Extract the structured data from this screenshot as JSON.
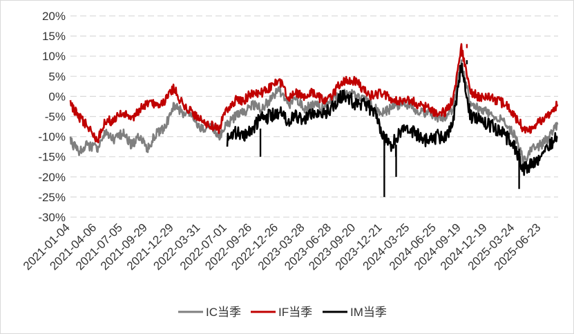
{
  "chart_data": {
    "type": "line",
    "title": "",
    "xlabel": "",
    "ylabel": "",
    "ylim": [
      -0.3,
      0.2
    ],
    "y_ticks": [
      "20%",
      "15%",
      "10%",
      "5%",
      "0%",
      "-5%",
      "-10%",
      "-15%",
      "-20%",
      "-25%",
      "-30%"
    ],
    "x_ticks": [
      "2021-01-04",
      "2021-04-06",
      "2021-07-05",
      "2021-09-29",
      "2021-12-29",
      "2022-03-31",
      "2022-07-01",
      "2022-09-26",
      "2022-12-26",
      "2023-03-28",
      "2023-06-28",
      "2023-09-20",
      "2023-12-21",
      "2024-03-25",
      "2024-06-25",
      "2024-09-19",
      "2024-12-19",
      "2025-03-24",
      "2025-06-23"
    ],
    "grid": "horizontal dashed",
    "legend_position": "bottom",
    "x": [
      "2021-01-04",
      "2021-02-01",
      "2021-03-01",
      "2021-04-06",
      "2021-05-06",
      "2021-06-04",
      "2021-07-05",
      "2021-08-03",
      "2021-09-01",
      "2021-09-29",
      "2021-10-28",
      "2021-11-26",
      "2021-12-29",
      "2022-01-27",
      "2022-03-01",
      "2022-03-31",
      "2022-05-05",
      "2022-06-02",
      "2022-07-01",
      "2022-07-29",
      "2022-08-26",
      "2022-09-26",
      "2022-10-28",
      "2022-11-25",
      "2022-12-26",
      "2023-01-30",
      "2023-02-27",
      "2023-03-28",
      "2023-04-27",
      "2023-05-29",
      "2023-06-28",
      "2023-07-26",
      "2023-08-23",
      "2023-09-20",
      "2023-10-24",
      "2023-11-21",
      "2023-12-21",
      "2024-01-22",
      "2024-02-21",
      "2024-03-25",
      "2024-04-24",
      "2024-05-27",
      "2024-06-25",
      "2024-07-23",
      "2024-08-20",
      "2024-09-19",
      "2024-10-21",
      "2024-11-18",
      "2024-12-19",
      "2025-01-17",
      "2025-02-21",
      "2025-03-24",
      "2025-04-22",
      "2025-05-22",
      "2025-06-23",
      "2025-07-21",
      "2025-08-18"
    ],
    "series": [
      {
        "name": "IC当季",
        "color": "#7f7f7f",
        "width": 2.6,
        "values": [
          -0.11,
          -0.14,
          -0.12,
          -0.13,
          -0.09,
          -0.11,
          -0.09,
          -0.12,
          -0.1,
          -0.13,
          -0.09,
          -0.08,
          -0.02,
          -0.04,
          -0.05,
          -0.08,
          -0.07,
          -0.1,
          -0.07,
          -0.05,
          -0.04,
          -0.02,
          -0.03,
          -0.01,
          0.02,
          -0.02,
          -0.01,
          -0.03,
          -0.02,
          -0.03,
          -0.01,
          0.0,
          0.01,
          0.0,
          -0.01,
          -0.03,
          -0.04,
          -0.03,
          -0.02,
          -0.02,
          -0.04,
          -0.04,
          -0.05,
          -0.06,
          -0.03,
          0.08,
          -0.02,
          -0.03,
          -0.04,
          -0.05,
          -0.07,
          -0.1,
          -0.16,
          -0.13,
          -0.12,
          -0.1,
          -0.07
        ]
      },
      {
        "name": "IF当季",
        "color": "#c00000",
        "width": 2.6,
        "values": [
          -0.02,
          -0.05,
          -0.07,
          -0.11,
          -0.06,
          -0.06,
          -0.04,
          -0.06,
          -0.03,
          -0.02,
          -0.02,
          -0.01,
          0.02,
          -0.02,
          -0.04,
          -0.06,
          -0.07,
          -0.08,
          -0.03,
          -0.01,
          -0.01,
          0.01,
          0.01,
          0.02,
          0.04,
          0.0,
          0.01,
          0.0,
          0.01,
          -0.01,
          0.0,
          0.03,
          0.04,
          0.04,
          0.01,
          0.0,
          0.01,
          -0.01,
          -0.01,
          -0.01,
          -0.02,
          -0.03,
          -0.04,
          -0.04,
          -0.01,
          0.12,
          0.01,
          0.0,
          0.0,
          -0.01,
          -0.02,
          -0.05,
          -0.08,
          -0.08,
          -0.06,
          -0.04,
          -0.02
        ]
      },
      {
        "name": "IM当季",
        "color": "#000000",
        "width": 2.6,
        "values": [
          null,
          null,
          null,
          null,
          null,
          null,
          null,
          null,
          null,
          null,
          null,
          null,
          null,
          null,
          null,
          null,
          null,
          null,
          -0.11,
          -0.09,
          -0.1,
          -0.08,
          -0.05,
          -0.05,
          -0.04,
          -0.06,
          -0.05,
          -0.06,
          -0.04,
          -0.04,
          -0.03,
          0.0,
          0.0,
          -0.02,
          -0.02,
          -0.04,
          -0.1,
          -0.12,
          -0.09,
          -0.08,
          -0.1,
          -0.11,
          -0.1,
          -0.1,
          -0.07,
          0.08,
          -0.05,
          -0.06,
          -0.07,
          -0.08,
          -0.1,
          -0.13,
          -0.18,
          -0.17,
          -0.15,
          -0.12,
          -0.1
        ]
      }
    ],
    "spikes": [
      {
        "series": 2,
        "x": "2023-12-27",
        "value": -0.25
      },
      {
        "series": 2,
        "x": "2024-02-06",
        "value": -0.2
      },
      {
        "series": 2,
        "x": "2024-02-05",
        "value": -0.15
      },
      {
        "series": 0,
        "x": "2024-10-08",
        "value": 0.09
      },
      {
        "series": 1,
        "x": "2024-10-08",
        "value": 0.13
      },
      {
        "series": 2,
        "x": "2024-10-08",
        "value": 0.09
      },
      {
        "series": 2,
        "x": "2025-04-07",
        "value": -0.23
      },
      {
        "series": 2,
        "x": "2022-10-24",
        "value": -0.15
      }
    ]
  }
}
